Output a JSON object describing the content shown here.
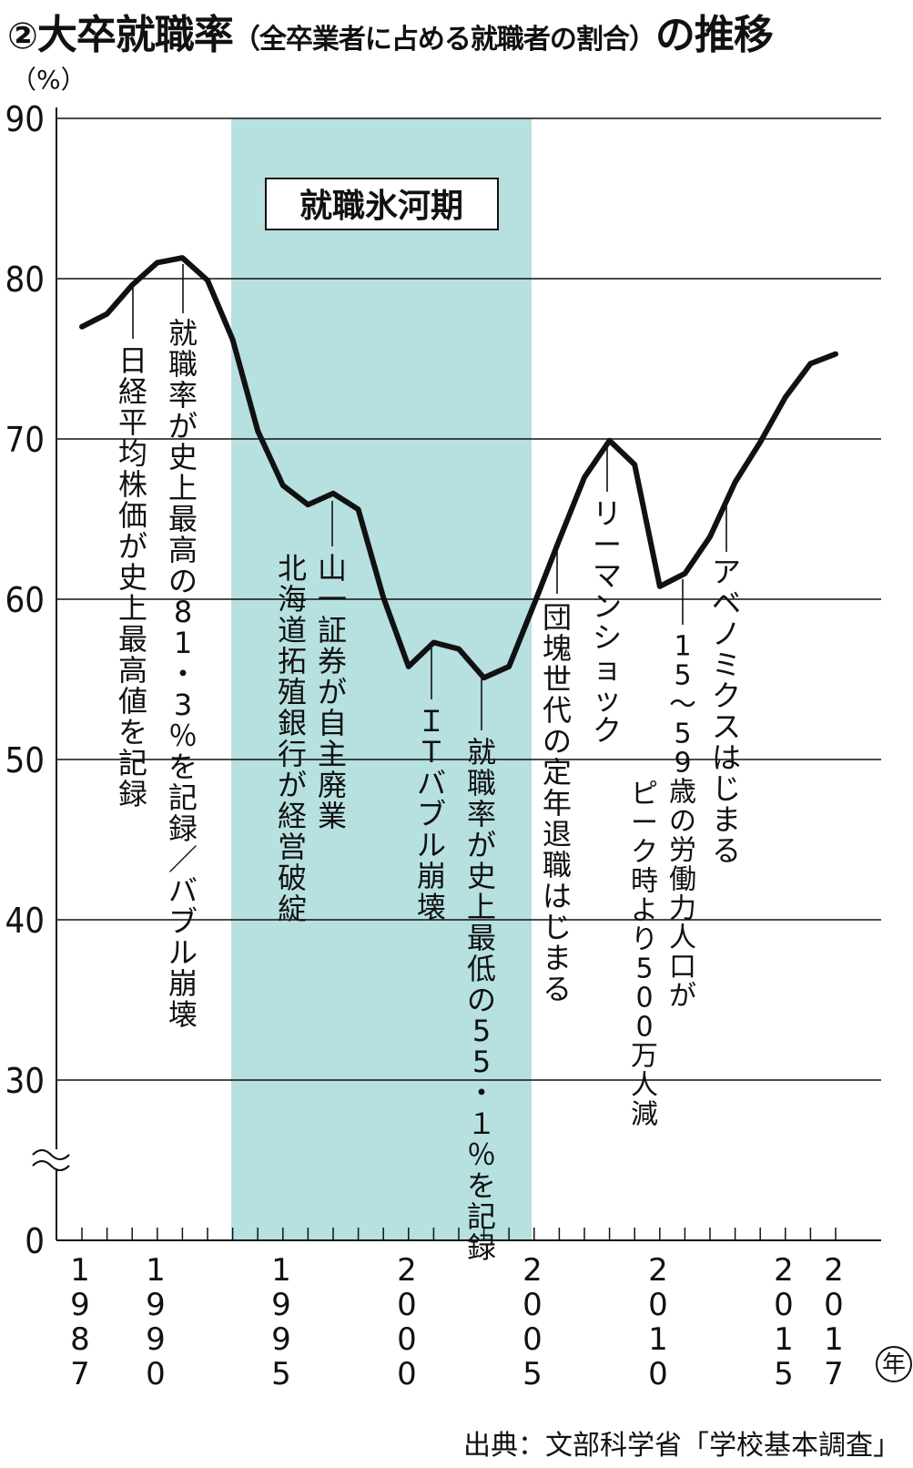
{
  "title": {
    "number": "②",
    "main": "大卒就職率",
    "paren": "（全卒業者に占める就職者の割合）",
    "suffix": "の推移"
  },
  "unit": "（%）",
  "source": "出典：文部科学省「学校基本調査」",
  "year_unit": "年",
  "ice_age_label": "就職氷河期",
  "chart_data": {
    "type": "line",
    "ylim": [
      0,
      90
    ],
    "y_ticks": [
      0,
      30,
      40,
      50,
      60,
      70,
      80,
      90
    ],
    "axis_break": "between 0 and 30",
    "grid": true,
    "x_tick_labels": [
      "1987",
      "1990",
      "1995",
      "2000",
      "2005",
      "2010",
      "2015",
      "2017"
    ],
    "shaded_region": {
      "from": 1993,
      "to": 2004,
      "label": "就職氷河期"
    },
    "x": [
      1987,
      1988,
      1989,
      1990,
      1991,
      1992,
      1993,
      1994,
      1995,
      1996,
      1997,
      1998,
      1999,
      2000,
      2001,
      2002,
      2003,
      2004,
      2005,
      2006,
      2007,
      2008,
      2009,
      2010,
      2011,
      2012,
      2013,
      2014,
      2015,
      2016,
      2017
    ],
    "values": [
      77.0,
      77.8,
      79.6,
      81.0,
      81.3,
      79.9,
      76.2,
      70.5,
      67.1,
      65.9,
      66.6,
      65.6,
      60.1,
      55.8,
      57.3,
      56.9,
      55.1,
      55.8,
      59.7,
      63.7,
      67.6,
      69.9,
      68.4,
      60.8,
      61.6,
      63.9,
      67.3,
      69.8,
      72.6,
      74.7,
      75.3
    ],
    "annotations": [
      {
        "x": 1989,
        "text": "日経平均株価が史上最高値を記録"
      },
      {
        "x": 1991,
        "text": "就職率が史上最高の81・3％を記録／バブル崩壊"
      },
      {
        "x": 1997,
        "text": "山一証券が自主廃業"
      },
      {
        "x": 1997,
        "text": "北海道拓殖銀行が経営破綻"
      },
      {
        "x": 2001,
        "text": "ＩＴバブル崩壊"
      },
      {
        "x": 2003,
        "text": "就職率が史上最低の55・１％を記録"
      },
      {
        "x": 2006,
        "text": "団塊世代の定年退職はじまる"
      },
      {
        "x": 2008,
        "text": "リーマンショック"
      },
      {
        "x": 2012,
        "text": "15～59歳の労働力人口が"
      },
      {
        "x": 2012,
        "text": "ピーク時より500万人減"
      },
      {
        "x": 2013,
        "text": "アベノミクスはじまる"
      }
    ]
  }
}
